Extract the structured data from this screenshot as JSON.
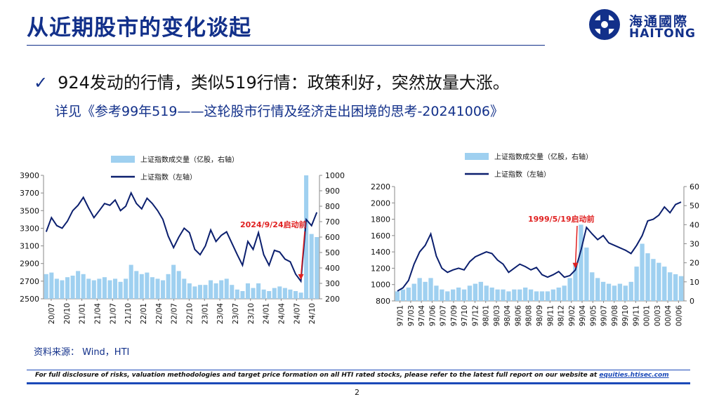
{
  "header": {
    "title": "从近期股市的变化谈起",
    "logo_cn": "海通國際",
    "logo_en": "HAITONG"
  },
  "main": {
    "bullet": "924发动的行情，类似519行情：政策利好，突然放量大涨。",
    "subline": "详见《参考99年519——这轮股市行情及经济走出困境的思考-20241006》"
  },
  "colors": {
    "brand": "#12308a",
    "line": "#0b1f6e",
    "bar": "#9fd0f0",
    "annot": "#e02020"
  },
  "chart_data": [
    {
      "type": "bar+line",
      "legend": [
        "上证指数成交量（亿股，右轴）",
        "上证指数（左轴）"
      ],
      "x_tick_labels": [
        "20/07",
        "20/10",
        "21/01",
        "21/04",
        "21/07",
        "21/10",
        "22/01",
        "22/04",
        "22/07",
        "22/10",
        "23/01",
        "23/04",
        "23/07",
        "23/10",
        "24/01",
        "24/04",
        "24/07",
        "24/10"
      ],
      "y_left": {
        "min": 2500,
        "max": 3900,
        "ticks": [
          2500,
          2700,
          2900,
          3100,
          3300,
          3500,
          3700,
          3900
        ]
      },
      "y_right": {
        "min": 200,
        "max": 1000,
        "ticks": [
          200,
          300,
          400,
          500,
          600,
          700,
          800,
          900,
          1000
        ]
      },
      "line_index": [
        3260,
        3420,
        3330,
        3300,
        3380,
        3500,
        3560,
        3650,
        3530,
        3420,
        3500,
        3580,
        3560,
        3620,
        3500,
        3550,
        3700,
        3580,
        3520,
        3640,
        3580,
        3500,
        3400,
        3210,
        3080,
        3200,
        3300,
        3250,
        3060,
        3000,
        3100,
        3280,
        3150,
        3220,
        3260,
        3130,
        3000,
        2880,
        3150,
        3060,
        3250,
        3000,
        2880,
        3050,
        3030,
        2950,
        2920,
        2780,
        2700,
        3400,
        3330,
        3480
      ],
      "volume": [
        360,
        370,
        330,
        320,
        340,
        350,
        380,
        360,
        330,
        320,
        330,
        340,
        320,
        330,
        310,
        330,
        420,
        380,
        360,
        370,
        340,
        330,
        320,
        360,
        420,
        380,
        330,
        300,
        280,
        290,
        290,
        320,
        300,
        320,
        330,
        290,
        260,
        250,
        300,
        270,
        300,
        260,
        250,
        270,
        280,
        270,
        260,
        250,
        240,
        1000,
        620,
        600
      ],
      "annotation": "2024/9/24启动前"
    },
    {
      "type": "bar+line",
      "legend": [
        "上证指数成交量（亿股，右轴）",
        "上证指数（左轴）"
      ],
      "x_tick_labels": [
        "97/01",
        "97/03",
        "97/04",
        "97/06",
        "97/07",
        "97/09",
        "97/10",
        "97/12",
        "98/01",
        "98/03",
        "98/04",
        "98/06",
        "98/08",
        "98/09",
        "98/11",
        "98/12",
        "99/02",
        "99/04",
        "99/05",
        "99/07",
        "99/08",
        "99/10",
        "99/11",
        "00/01",
        "00/03",
        "00/04",
        "00/06"
      ],
      "y_left": {
        "min": 800,
        "max": 2200,
        "ticks": [
          800,
          1000,
          1200,
          1400,
          1600,
          1800,
          2000,
          2200
        ]
      },
      "y_right": {
        "min": 0,
        "max": 60,
        "ticks": [
          0,
          10,
          20,
          30,
          40,
          50,
          60
        ]
      },
      "line_index": [
        920,
        960,
        1050,
        1250,
        1400,
        1480,
        1620,
        1350,
        1200,
        1150,
        1180,
        1200,
        1180,
        1280,
        1340,
        1370,
        1400,
        1380,
        1300,
        1250,
        1150,
        1200,
        1250,
        1220,
        1180,
        1210,
        1120,
        1090,
        1120,
        1160,
        1090,
        1110,
        1180,
        1420,
        1700,
        1620,
        1550,
        1600,
        1510,
        1480,
        1450,
        1420,
        1380,
        1480,
        1600,
        1780,
        1800,
        1850,
        1950,
        1880,
        1980,
        2010
      ],
      "volume": [
        5,
        6,
        7,
        9,
        12,
        10,
        12,
        8,
        6,
        5,
        6,
        7,
        6,
        8,
        9,
        10,
        8,
        7,
        6,
        6,
        5,
        6,
        6,
        7,
        6,
        5,
        5,
        5,
        6,
        7,
        8,
        12,
        20,
        40,
        28,
        15,
        12,
        10,
        9,
        8,
        9,
        8,
        10,
        18,
        30,
        25,
        22,
        20,
        18,
        15,
        14,
        13
      ],
      "annotation": "1999/5/19启动前"
    }
  ],
  "footer": {
    "source": "资料来源： Wind，HTI",
    "disclosure": "For full disclosure of risks, valuation methodologies and target price formation on all HTI rated stocks, please refer to the latest full report on our website at",
    "link": "equities.htisec.com",
    "page": "2"
  }
}
